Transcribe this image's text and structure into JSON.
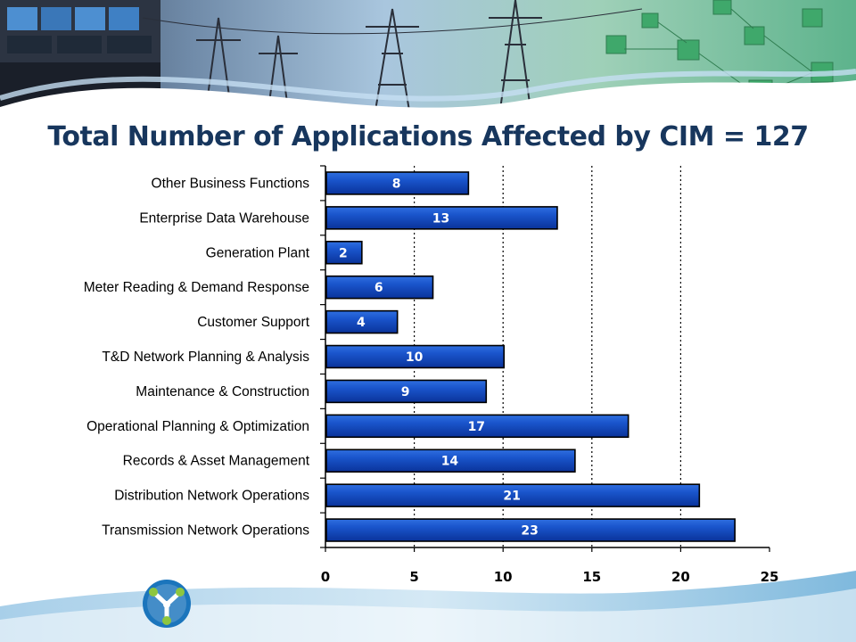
{
  "slide": {
    "title": "Total Number of Applications Affected by CIM = 127"
  },
  "colors": {
    "bar_fill": "#0b3fb0",
    "bar_highlight": "#2f6fe0",
    "title_text": "#17365d",
    "plot_background": "#ffffff",
    "logo_blue": "#1b75bc",
    "logo_green": "#8dc63f"
  },
  "icons": {
    "logo": "tri-node-logo-icon"
  },
  "chart_data": {
    "type": "bar",
    "orientation": "horizontal",
    "title": "Total Number of Applications Affected by CIM = 127",
    "xlabel": "",
    "ylabel": "",
    "xlim": [
      0,
      25
    ],
    "xticks": [
      0,
      5,
      10,
      15,
      20,
      25
    ],
    "grid": "vertical dotted",
    "categories": [
      "Other Business Functions",
      "Enterprise Data Warehouse",
      "Generation Plant",
      "Meter Reading & Demand Response",
      "Customer Support",
      "T&D Network Planning & Analysis",
      "Maintenance & Construction",
      "Operational Planning & Optimization",
      "Records & Asset Management",
      "Distribution Network Operations",
      "Transmission Network Operations"
    ],
    "values": [
      8,
      13,
      2,
      6,
      4,
      10,
      9,
      17,
      14,
      21,
      23
    ],
    "data_labels": true
  }
}
